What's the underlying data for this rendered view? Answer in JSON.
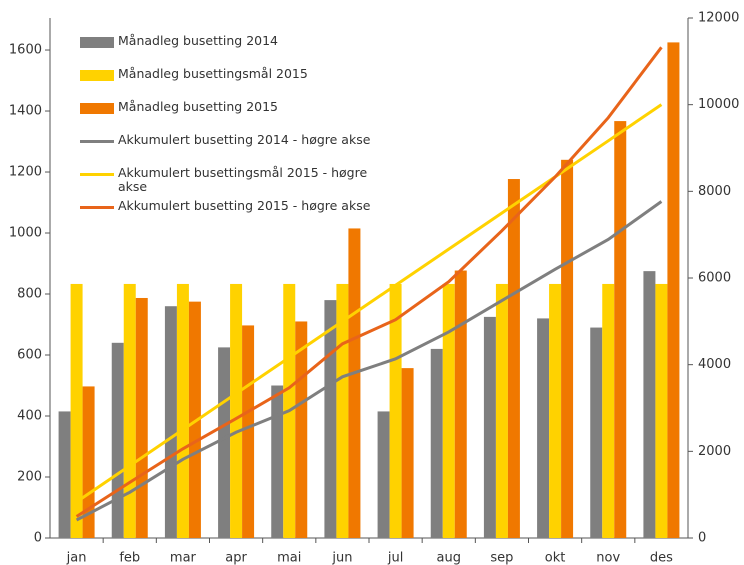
{
  "chart_data": {
    "type": "bar",
    "categories": [
      "jan",
      "feb",
      "mar",
      "apr",
      "mai",
      "jun",
      "jul",
      "aug",
      "sep",
      "okt",
      "nov",
      "des"
    ],
    "series": [
      {
        "name": "Månadleg busetting 2014",
        "type": "bar",
        "color": "#7f7f7f",
        "values": [
          415,
          640,
          760,
          625,
          500,
          780,
          415,
          620,
          725,
          720,
          690,
          875
        ]
      },
      {
        "name": "Månadleg busettingsmål 2015",
        "type": "bar",
        "color": "#ffd200",
        "values": [
          833,
          833,
          833,
          833,
          833,
          833,
          833,
          833,
          833,
          833,
          833,
          833
        ]
      },
      {
        "name": "Månadleg busetting 2015",
        "type": "bar",
        "color": "#f07800",
        "values": [
          497,
          787,
          775,
          697,
          710,
          1015,
          557,
          877,
          1177,
          1240,
          1367,
          1625
        ]
      },
      {
        "name": "Akkumulert busetting 2014 - høgre akse",
        "type": "line",
        "axis": "y2",
        "color": "#7f7f7f",
        "values": [
          415,
          1055,
          1815,
          2440,
          2940,
          3720,
          4135,
          4755,
          5480,
          6200,
          6890,
          7765
        ]
      },
      {
        "name": "Akkumulert busettingsmål 2015 - høgre akse",
        "type": "line",
        "axis": "y2",
        "color": "#ffd200",
        "values": [
          833,
          1666,
          2500,
          3333,
          4166,
          5000,
          5833,
          6666,
          7500,
          8333,
          9166,
          10000
        ]
      },
      {
        "name": "Akkumulert busetting 2015 - høgre akse",
        "type": "line",
        "axis": "y2",
        "color": "#e8641a",
        "values": [
          497,
          1284,
          2059,
          2756,
          3466,
          4481,
          5038,
          5915,
          7092,
          8332,
          9699,
          11324
        ]
      }
    ],
    "ylim": [
      0,
      1705
    ],
    "yticks": [
      0,
      200,
      400,
      600,
      800,
      1000,
      1200,
      1400,
      1600
    ],
    "y2lim": [
      0,
      12000
    ],
    "y2ticks": [
      0,
      2000,
      4000,
      6000,
      8000,
      10000,
      12000
    ],
    "legend": "upper-left"
  }
}
